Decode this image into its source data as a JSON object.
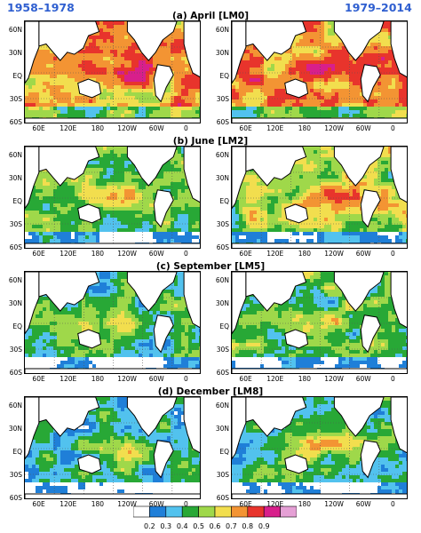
{
  "header": {
    "left_period": "1958–1978",
    "right_period": "1979–2014"
  },
  "panels": [
    {
      "title": "(a) April [LM0]",
      "level_left": 0.72,
      "level_right": 0.74
    },
    {
      "title": "(b) June [LM2]",
      "level_left": 0.48,
      "level_right": 0.55
    },
    {
      "title": "(c) September [LM5]",
      "level_left": 0.4,
      "level_right": 0.45
    },
    {
      "title": "(d) December [LM8]",
      "level_left": 0.38,
      "level_right": 0.42
    }
  ],
  "axes": {
    "lat_labels": [
      "60N",
      "30N",
      "EQ",
      "30S",
      "60S"
    ],
    "lon_labels": [
      "60E",
      "120E",
      "180",
      "120W",
      "60W",
      "0"
    ]
  },
  "colorbar": {
    "labels": [
      "0.2",
      "0.3",
      "0.4",
      "0.5",
      "0.6",
      "0.7",
      "0.8",
      "0.9"
    ],
    "colors": [
      "#ffffff",
      "#1f7fd8",
      "#52c2ee",
      "#28a836",
      "#9fd84a",
      "#f2de4e",
      "#f39433",
      "#e8342c",
      "#d81f8b",
      "#e5a0d5"
    ]
  }
}
